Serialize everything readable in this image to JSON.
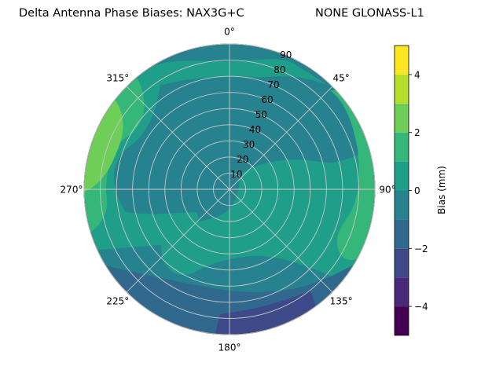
{
  "titles": {
    "left": "Delta Antenna Phase Biases: NAX3G+C",
    "right": "NONE GLONASS-L1"
  },
  "chart_data": {
    "type": "polar_contour",
    "title": "Delta Antenna Phase Biases: NAX3G+C",
    "subtitle": "NONE GLONASS-L1",
    "azimuth_ticks": [
      {
        "deg": 0,
        "label": "0°"
      },
      {
        "deg": 45,
        "label": "45°"
      },
      {
        "deg": 90,
        "label": "90°"
      },
      {
        "deg": 135,
        "label": "135°"
      },
      {
        "deg": 180,
        "label": "180°"
      },
      {
        "deg": 225,
        "label": "225°"
      },
      {
        "deg": 270,
        "label": "270°"
      },
      {
        "deg": 315,
        "label": "315°"
      }
    ],
    "zenith_ticks": [
      10,
      20,
      30,
      40,
      50,
      60,
      70,
      80,
      90
    ],
    "zenith_range": [
      0,
      90
    ],
    "grid": true,
    "colorbar": {
      "label": "Bias (mm)",
      "range": [
        -5,
        5
      ],
      "levels": [
        -5,
        -4,
        -3,
        -2,
        -1,
        0,
        1,
        2,
        3,
        4,
        5
      ],
      "tick_values": [
        -4,
        -2,
        0,
        2,
        4
      ],
      "tick_labels": [
        "−4",
        "−2",
        "0",
        "2",
        "4"
      ],
      "colors": [
        "#440154",
        "#482878",
        "#3e4989",
        "#31688e",
        "#26828e",
        "#1f9e89",
        "#35b779",
        "#6ece58",
        "#b5de2b",
        "#fde725"
      ]
    },
    "approximate_regions": [
      {
        "bias_range": [
          -1,
          0
        ],
        "area": "inner zenith disc and most of the north"
      },
      {
        "bias_range": [
          0,
          1
        ],
        "area": "east, south-west and far north band"
      },
      {
        "bias_range": [
          1,
          2
        ],
        "area": "west, north-west and east edge"
      },
      {
        "bias_range": [
          2,
          3
        ],
        "area": "west edge near 290° and east edge near 110°"
      },
      {
        "bias_range": [
          -2,
          -1
        ],
        "area": "south edge between 150° and 220°"
      },
      {
        "bias_range": [
          -3,
          -2
        ],
        "area": "south edge near 180°"
      }
    ]
  }
}
